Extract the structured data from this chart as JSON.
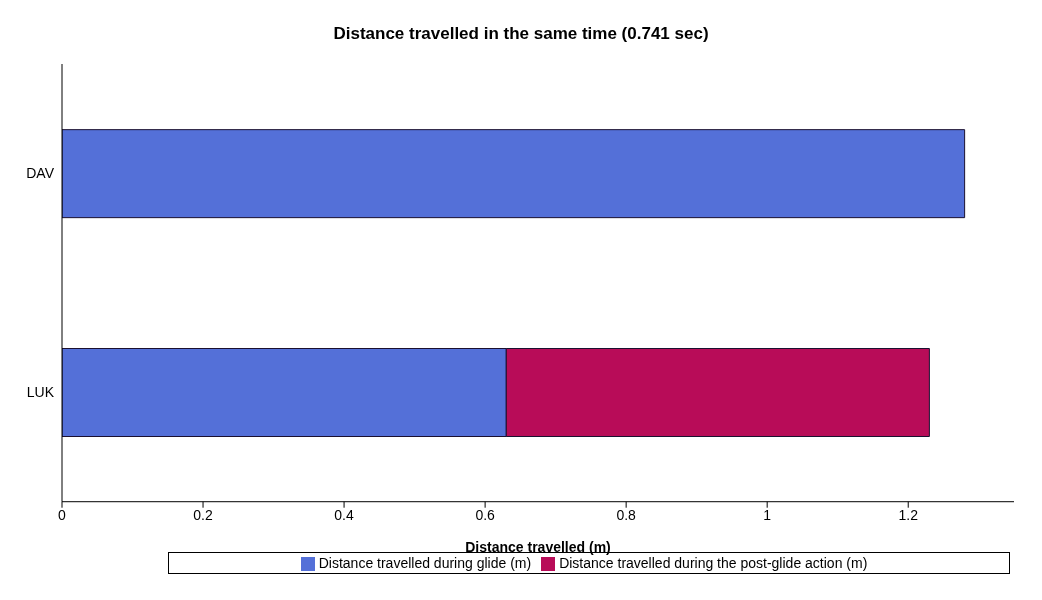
{
  "chart_data": {
    "type": "bar",
    "orientation": "horizontal",
    "stacked": true,
    "title": "Distance travelled in the same time (0.741 sec)",
    "xlabel": "Distance travelled (m)",
    "categories": [
      "DAV",
      "LUK"
    ],
    "series": [
      {
        "name": "Distance travelled during glide (m)",
        "color": "#5470d8",
        "values": [
          1.28,
          0.63
        ]
      },
      {
        "name": "Distance travelled during the post-glide action (m)",
        "color": "#b80c58",
        "values": [
          0,
          0.6
        ]
      }
    ],
    "xlim": [
      0,
      1.35
    ],
    "xticks": [
      0,
      0.2,
      0.4,
      0.6,
      0.8,
      1,
      1.2
    ],
    "grid": false,
    "legend": "bottom"
  }
}
